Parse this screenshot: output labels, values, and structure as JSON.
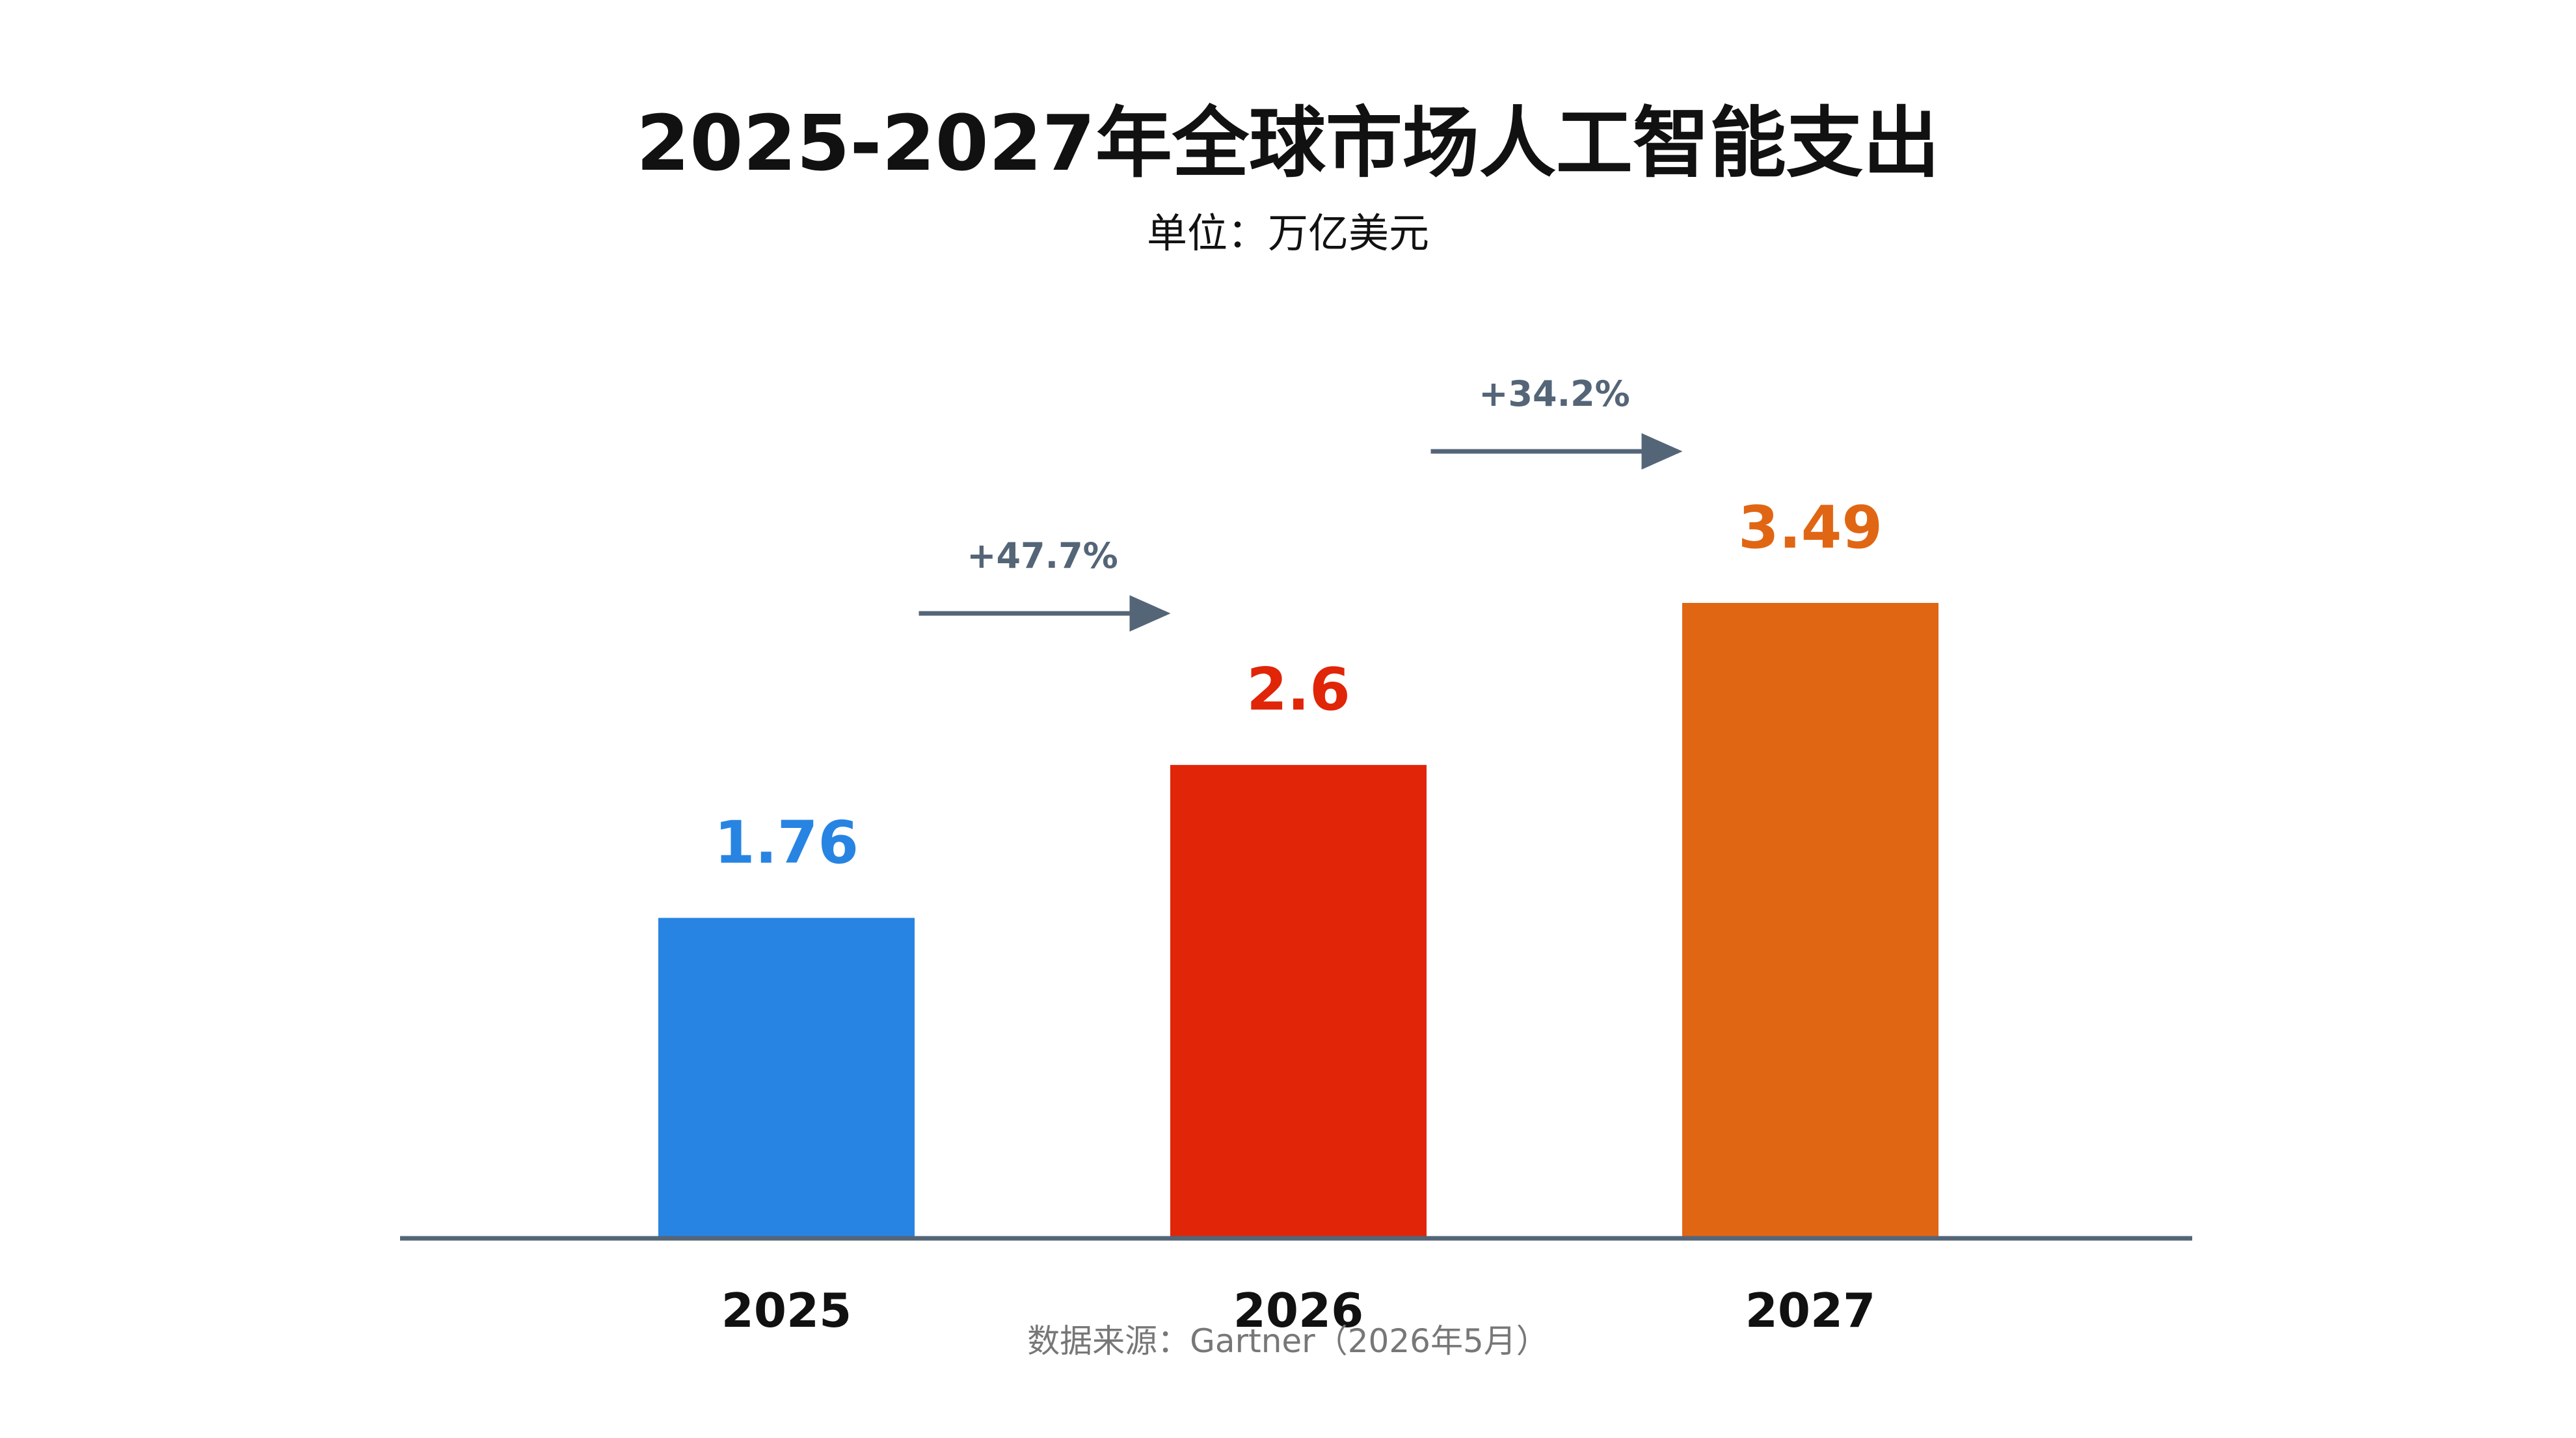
{
  "chart_data": {
    "type": "bar",
    "title": "2025-2027年全球市场人工智能支出",
    "subtitle": "单位：万亿美元",
    "categories": [
      "2025",
      "2026",
      "2027"
    ],
    "values": [
      1.76,
      2.6,
      3.49
    ],
    "value_labels": [
      "1.76",
      "2.6",
      "3.49"
    ],
    "bar_colors": [
      "#2884E2",
      "#E02508",
      "#E06614"
    ],
    "growth_annotations": [
      {
        "label": "+47.7%",
        "from": "2025",
        "to": "2026"
      },
      {
        "label": "+34.2%",
        "from": "2026",
        "to": "2027"
      }
    ],
    "annotation_color": "#556578",
    "axis_color": "#556578",
    "ylim": [
      0,
      3.49
    ],
    "grid": false,
    "source": "数据来源：Gartner（2026年5月）"
  }
}
